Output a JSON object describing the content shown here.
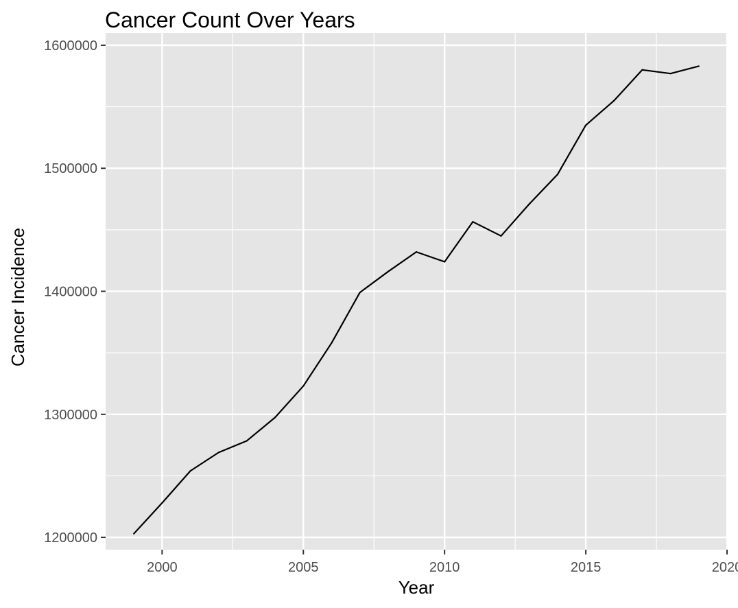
{
  "chart_data": {
    "type": "line",
    "title": "Cancer Count Over Years",
    "xlabel": "Year",
    "ylabel": "Cancer Incidence",
    "xlim": [
      1998,
      2020
    ],
    "ylim": [
      1190000,
      1610000
    ],
    "x_ticks": [
      2000,
      2005,
      2010,
      2015,
      2020
    ],
    "y_ticks": [
      1200000,
      1300000,
      1400000,
      1500000,
      1600000
    ],
    "grid": true,
    "legend": "none",
    "colors": {
      "panel_background": "#e5e5e5",
      "grid": "#ffffff",
      "line": "#000000",
      "tick_text": "#4d4d4d",
      "tick_mark": "#333333"
    },
    "series": [
      {
        "x": [
          1999,
          2000,
          2001,
          2002,
          2003,
          2004,
          2005,
          2006,
          2007,
          2008,
          2009,
          2010,
          2011,
          2012,
          2013,
          2014,
          2015,
          2016,
          2017,
          2018,
          2019
        ],
        "values": [
          1203000,
          1228000,
          1254000,
          1269000,
          1278500,
          1297500,
          1323000,
          1358000,
          1399000,
          1416000,
          1432000,
          1424000,
          1456500,
          1445000,
          1471000,
          1495000,
          1535000,
          1555000,
          1580000,
          1577000,
          1583000
        ]
      }
    ]
  }
}
